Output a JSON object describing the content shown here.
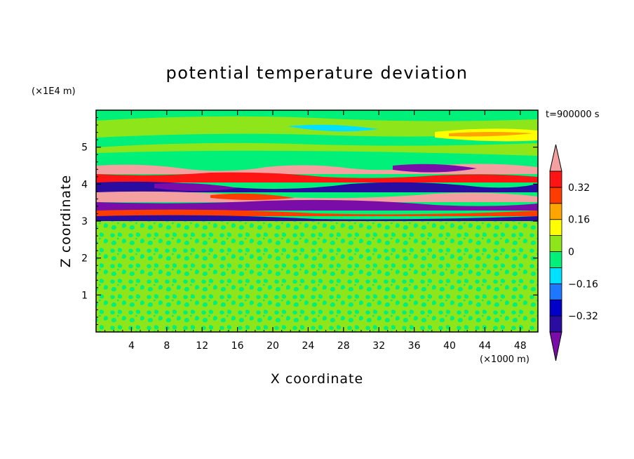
{
  "chart_data": {
    "type": "heatmap",
    "title": "potential temperature deviation",
    "xlabel": "X coordinate",
    "ylabel": "Z coordinate",
    "x_unit": "(×1000 m)",
    "y_unit": "(×1E4 m)",
    "time_label": "t=900000 s",
    "x_ticks": [
      4,
      8,
      12,
      16,
      20,
      24,
      28,
      32,
      36,
      40,
      44,
      48
    ],
    "y_ticks": [
      1,
      2,
      3,
      4,
      5
    ],
    "xlim": [
      0,
      50
    ],
    "ylim": [
      0,
      6
    ],
    "colorbar": {
      "levels": [
        -0.4,
        -0.32,
        -0.24,
        -0.16,
        -0.08,
        0,
        0.08,
        0.16,
        0.24,
        0.32,
        0.4
      ],
      "tick_labels": [
        "0.32",
        "0.16",
        "0",
        "−0.16",
        "−0.32"
      ],
      "tick_values": [
        0.32,
        0.16,
        0,
        -0.16,
        -0.32
      ],
      "colors": [
        "#7a0da8",
        "#2a0ca0",
        "#0000c8",
        "#1e78ff",
        "#00e0ff",
        "#00f07a",
        "#8ee61a",
        "#ffff00",
        "#ffa500",
        "#ff3c00",
        "#ff1414",
        "#f5a0a0"
      ],
      "extend": "both"
    },
    "layers": [
      {
        "region": "z 0 to 2.9",
        "pattern": "fine mottled noise",
        "dominant_values": [
          -0.04,
          0.04
        ]
      },
      {
        "region": "z 2.9 to 4.5",
        "pattern": "strong alternating bands",
        "dominant_values": [
          -0.4,
          0.4
        ]
      },
      {
        "region": "z 4.5 to 6",
        "pattern": "smooth weak bands",
        "dominant_values": [
          -0.12,
          0.2
        ]
      }
    ]
  }
}
